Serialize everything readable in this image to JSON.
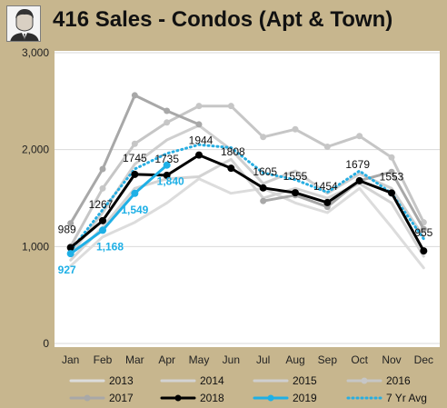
{
  "chart_data": {
    "type": "line",
    "title": "416 Sales - Condos (Apt & Town)",
    "categories": [
      "Jan",
      "Feb",
      "Mar",
      "Apr",
      "May",
      "Jun",
      "Jul",
      "Aug",
      "Sep",
      "Oct",
      "Nov",
      "Dec"
    ],
    "ylim": [
      0,
      3000
    ],
    "yticks": [
      0,
      1000,
      2000,
      3000
    ],
    "ytick_labels": [
      "0",
      "1,000",
      "2,000",
      "3,000"
    ],
    "grid": "horizontal",
    "legend_position": "bottom",
    "series": [
      {
        "name": "2013",
        "color": "#dcdcdc",
        "style": "solid",
        "values": [
          800,
          1100,
          1250,
          1450,
          1700,
          1550,
          1600,
          1450,
          1350,
          1600,
          1200,
          780
        ]
      },
      {
        "name": "2014",
        "color": "#d3d3d3",
        "style": "solid",
        "values": [
          860,
          1200,
          1600,
          1700,
          1720,
          1900,
          1500,
          1600,
          1500,
          1650,
          1450,
          900
        ]
      },
      {
        "name": "2015",
        "color": "#cfcfcf",
        "style": "solid",
        "values": [
          920,
          1350,
          1850,
          2100,
          2250,
          2000,
          1650,
          1780,
          1550,
          1750,
          1600,
          1100
        ]
      },
      {
        "name": "2016",
        "color": "#c6c6c6",
        "style": "marker",
        "values": [
          1000,
          1600,
          2060,
          2280,
          2450,
          2450,
          2130,
          2210,
          2030,
          2140,
          1920,
          1250
        ]
      },
      {
        "name": "2017",
        "color": "#a8a8a8",
        "style": "marker",
        "values": [
          1240,
          1800,
          2560,
          2400,
          2260,
          null,
          1470,
          1530,
          1410,
          1680,
          1770,
          1180
        ]
      },
      {
        "name": "2018",
        "color": "#000000",
        "style": "marker",
        "values": [
          989,
          1267,
          1745,
          1735,
          1944,
          1808,
          1605,
          1555,
          1454,
          1679,
          1553,
          955
        ]
      },
      {
        "name": "2019",
        "color": "#1fb0e6",
        "style": "marker",
        "values": [
          927,
          1168,
          1549,
          1840,
          null,
          null,
          null,
          null,
          null,
          null,
          null,
          null
        ]
      },
      {
        "name": "7 Yr Avg",
        "color": "#27aee2",
        "style": "dotted",
        "values": [
          960,
          1380,
          1800,
          1960,
          2050,
          2020,
          1760,
          1690,
          1560,
          1780,
          1550,
          1080
        ]
      }
    ],
    "data_labels": [
      {
        "series": "2018",
        "index": 0,
        "text": "989"
      },
      {
        "series": "2018",
        "index": 1,
        "text": "1267"
      },
      {
        "series": "2018",
        "index": 2,
        "text": "1745"
      },
      {
        "series": "2018",
        "index": 3,
        "text": "1735"
      },
      {
        "series": "2018",
        "index": 4,
        "text": "1944"
      },
      {
        "series": "2018",
        "index": 5,
        "text": "1808"
      },
      {
        "series": "2018",
        "index": 6,
        "text": "1605"
      },
      {
        "series": "2018",
        "index": 7,
        "text": "1555"
      },
      {
        "series": "2018",
        "index": 8,
        "text": "1454"
      },
      {
        "series": "2018",
        "index": 9,
        "text": "1679"
      },
      {
        "series": "2018",
        "index": 10,
        "text": "1553"
      },
      {
        "series": "2018",
        "index": 11,
        "text": "955"
      },
      {
        "series": "2019",
        "index": 0,
        "text": "927"
      },
      {
        "series": "2019",
        "index": 1,
        "text": "1,168"
      },
      {
        "series": "2019",
        "index": 2,
        "text": "1,549"
      },
      {
        "series": "2019",
        "index": 3,
        "text": "1,840"
      }
    ]
  },
  "colors": {
    "frame_background": "#c7b68e",
    "plot_background": "#ffffff",
    "gridline": "#d9d9d9",
    "series_2018": "#000000",
    "series_2019": "#1fb0e6"
  },
  "header": {
    "avatar_icon": "person-portrait-icon"
  }
}
